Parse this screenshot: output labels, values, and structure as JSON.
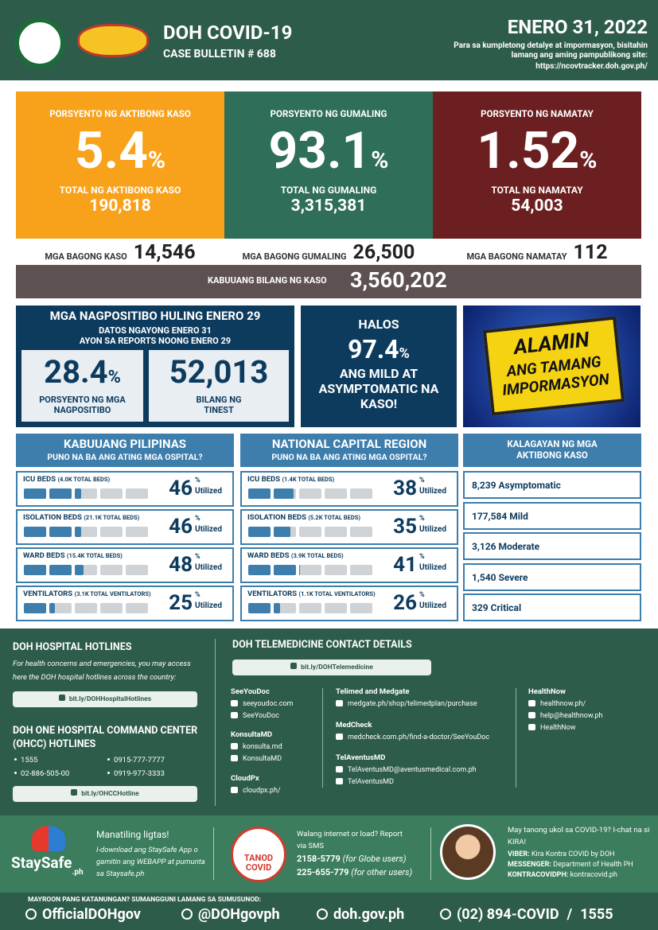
{
  "header": {
    "title": "DOH COVID-19",
    "subtitle": "CASE BULLETIN # 688",
    "date": "ENERO 31, 2022",
    "note": "Para sa kumpletong detalye at impormasyon, bisitahin lamang ang aming pampublikong site:",
    "site": "https://ncovtracker.doh.gov.ph/"
  },
  "summary": [
    {
      "label": "PORSYENTO NG AKTIBONG KASO",
      "percent": "5.4",
      "unit": "%",
      "total_label": "TOTAL NG AKTIBONG KASO",
      "total": "190,818"
    },
    {
      "label": "PORSYENTO NG GUMALING",
      "percent": "93.1",
      "unit": "%",
      "total_label": "TOTAL NG GUMALING",
      "total": "3,315,381"
    },
    {
      "label": "PORSYENTO NG NAMATAY",
      "percent": "1.52",
      "unit": "%",
      "total_label": "TOTAL NG NAMATAY",
      "total": "54,003"
    }
  ],
  "new_cases": [
    {
      "label": "MGA BAGONG KASO",
      "value": "14,546"
    },
    {
      "label": "MGA BAGONG GUMALING",
      "value": "26,500"
    },
    {
      "label": "MGA BAGONG NAMATAY",
      "value": "112"
    }
  ],
  "total": {
    "label": "KABUUANG BILANG NG KASO",
    "value": "3,560,202"
  },
  "positivity": {
    "title": "MGA NAGPOSITIBO HULING ENERO 29",
    "sub1": "DATOS NGAYONG ENERO 31",
    "sub2": "AYON SA REPORTS NOONG ENERO 29",
    "rate": "28.4",
    "unit": "%",
    "rate_label": "PORSYENTO NG MGA NAGPOSITIBO",
    "tested": "52,013",
    "tested_label": "BILANG NG TINEST"
  },
  "mild": {
    "line1": "HALOS",
    "value": "97.4",
    "unit": "%",
    "line2": "ANG MILD AT ASYMPTOMATIC NA KASO!"
  },
  "banner": {
    "lines": [
      "ALAMIN",
      "ANG TAMANG",
      "IMPORMASYON"
    ]
  },
  "hospitals": [
    {
      "title": "KABUUANG PILIPINAS",
      "subtitle": "PUNO NA BA ANG ATING MGA OSPITAL?",
      "rows": [
        {
          "label": "ICU BEDS",
          "capacity": "(4.0K TOTAL BEDS)",
          "value": 46,
          "unit": "%",
          "suffix": "Utilized"
        },
        {
          "label": "ISOLATION BEDS",
          "capacity": "(21.1K TOTAL BEDS)",
          "value": 46,
          "unit": "%",
          "suffix": "Utilized"
        },
        {
          "label": "WARD BEDS",
          "capacity": "(15.4K TOTAL BEDS)",
          "value": 48,
          "unit": "%",
          "suffix": "Utilized"
        },
        {
          "label": "VENTILATORS",
          "capacity": "(3.1K TOTAL VENTILATORS)",
          "value": 25,
          "unit": "%",
          "suffix": "Utilized"
        }
      ]
    },
    {
      "title": "NATIONAL CAPITAL REGION",
      "subtitle": "PUNO NA BA ANG ATING MGA OSPITAL?",
      "rows": [
        {
          "label": "ICU BEDS",
          "capacity": "(1.4K TOTAL BEDS)",
          "value": 38,
          "unit": "%",
          "suffix": "Utilized"
        },
        {
          "label": "ISOLATION BEDS",
          "capacity": "(5.2K TOTAL BEDS)",
          "value": 35,
          "unit": "%",
          "suffix": "Utilized"
        },
        {
          "label": "WARD BEDS",
          "capacity": "(3.9K TOTAL BEDS)",
          "value": 41,
          "unit": "%",
          "suffix": "Utilized"
        },
        {
          "label": "VENTILATORS",
          "capacity": "(1.1K TOTAL VENTILATORS)",
          "value": 26,
          "unit": "%",
          "suffix": "Utilized"
        }
      ]
    }
  ],
  "active": {
    "title": "KALAGAYAN NG MGA AKTIBONG KASO",
    "rows": [
      {
        "count": "8,239",
        "status": "Asymptomatic"
      },
      {
        "count": "177,584",
        "status": "Mild"
      },
      {
        "count": "3,126",
        "status": "Moderate"
      },
      {
        "count": "1,540",
        "status": "Severe"
      },
      {
        "count": "329",
        "status": "Critical"
      }
    ]
  },
  "hotlines": {
    "title": "DOH HOSPITAL HOTLINES",
    "description": "For health concerns and emergencies, you may access here the DOH hospital hotlines across the country:",
    "link": "bit.ly/DOHHospitalHotlines",
    "ohcc_title": "DOH ONE HOSPITAL COMMAND CENTER (OHCC) HOTLINES",
    "numbers": [
      "1555",
      "0915-777-7777",
      "02-886-505-00",
      "0919-977-3333"
    ],
    "ohcc_link": "bit.ly/OHCCHotline"
  },
  "telemedicine": {
    "title": "DOH TELEMEDICINE CONTACT DETAILS",
    "link": "bit.ly/DOHTelemedicine",
    "columns": [
      [
        {
          "name": "SeeYouDoc",
          "items": [
            "seeyoudoc.com",
            "SeeYouDoc"
          ]
        },
        {
          "name": "KonsultaMD",
          "items": [
            "konsulta.md",
            "KonsultaMD"
          ]
        },
        {
          "name": "CloudPx",
          "items": [
            "cloudpx.ph/"
          ]
        }
      ],
      [
        {
          "name": "Telimed and Medgate",
          "items": [
            "medgate.ph/shop/telimedplan/purchase"
          ]
        },
        {
          "name": "MedCheck",
          "items": [
            "medcheck.com.ph/find-a-doctor/SeeYouDoc"
          ]
        },
        {
          "name": "TelAventusMD",
          "items": [
            "TelAventusMD@aventusmedical.com.ph",
            "TelAventusMD"
          ]
        }
      ],
      [
        {
          "name": "HealthNow",
          "items": [
            "healthnow.ph/",
            "help@healthnow.ph",
            "HealthNow"
          ]
        }
      ]
    ]
  },
  "staysafe": {
    "logo": "StaySafe",
    "logo_suffix": ".ph",
    "title": "Manatiling ligtas!",
    "text": "I-download ang StaySafe App o gamitin ang WEBAPP at pumunta sa Staysafe.ph"
  },
  "tanod": {
    "logo": "TANOD COVID",
    "text": "Walang internet or load? Report via SMS",
    "numbers": [
      {
        "number": "2158-5779",
        "note": "(for Globe users)"
      },
      {
        "number": "225-655-779",
        "note": "(for other users)"
      }
    ]
  },
  "kira": {
    "text": "May tanong ukol sa COVID-19? I-chat na si KIRA!",
    "channels": [
      {
        "label": "VIBER:",
        "value": "Kira Kontra COVID by DOH"
      },
      {
        "label": "MESSENGER:",
        "value": "Department of Health PH"
      },
      {
        "label": "KONTRACOVIDPH:",
        "value": "kontracovid.ph"
      }
    ]
  },
  "footer": {
    "caption": "MAYROON PANG KATANUNGAN? SUMANGGUNI LAMANG SA SUMUSUNOD:",
    "facebook": "OfficialDOHgov",
    "twitter": "@DOHgovph",
    "website": "doh.gov.ph",
    "phone": "(02) 894-COVID",
    "separator": "/",
    "hotline": "1555"
  }
}
